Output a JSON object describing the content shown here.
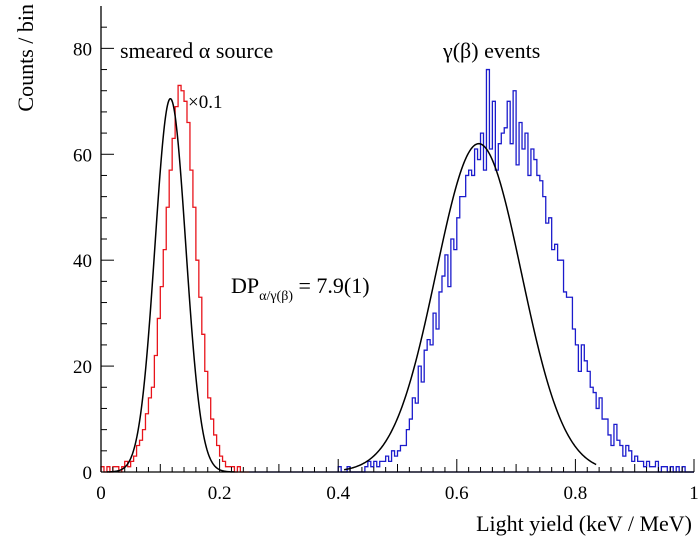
{
  "chart_data": {
    "type": "histogram",
    "xlabel": "Light yield (keV / MeV)",
    "ylabel": "Counts / bin",
    "xlim": [
      0,
      1
    ],
    "ylim": [
      0,
      88
    ],
    "xticks": [
      "0",
      "0.2",
      "0.4",
      "0.6",
      "0.8",
      "1"
    ],
    "yticks": [
      "0",
      "20",
      "40",
      "60",
      "80"
    ],
    "grid": false,
    "bin_width": 0.005,
    "series": [
      {
        "name": "smeared α source",
        "color": "#e8141b",
        "scale_label": "×0.1",
        "bin_start": 0.0,
        "counts": [
          1,
          0,
          1,
          0,
          1,
          1,
          0,
          1,
          2,
          1,
          2,
          3,
          5,
          6,
          8,
          11,
          14,
          16,
          22,
          29,
          35,
          42,
          50,
          57,
          63,
          69,
          73,
          72,
          70,
          66,
          57,
          50,
          40,
          33,
          26,
          19,
          14,
          10,
          7,
          5,
          3,
          2,
          1,
          1,
          1,
          0,
          1,
          0,
          0,
          0
        ],
        "fit": {
          "mean": 0.117,
          "sigma": 0.026,
          "amplitude": 70.5
        }
      },
      {
        "name": "γ(β) events",
        "color": "#1b1bcc",
        "bin_start": 0.4,
        "counts": [
          1,
          0,
          0,
          1,
          0,
          0,
          0,
          0,
          0,
          1,
          2,
          1,
          2,
          1,
          2,
          2,
          3,
          2,
          4,
          3,
          4,
          5,
          5,
          8,
          10,
          14,
          13,
          20,
          17,
          23,
          25,
          24,
          30,
          27,
          34,
          37,
          41,
          35,
          44,
          42,
          48,
          52,
          52,
          56,
          57,
          56,
          61,
          59,
          64,
          57,
          76,
          61,
          70,
          57,
          62,
          64,
          65,
          70,
          62,
          72,
          58,
          66,
          61,
          64,
          56,
          61,
          59,
          56,
          55,
          52,
          47,
          48,
          42,
          43,
          40,
          40,
          34,
          33,
          33,
          27,
          24,
          19,
          24,
          21,
          19,
          16,
          15,
          12,
          14,
          10,
          10,
          7,
          5,
          9,
          6,
          5,
          3,
          5,
          4,
          2,
          3,
          2,
          2,
          1,
          2,
          1,
          1,
          2,
          0,
          1,
          1,
          0,
          1,
          0,
          1,
          0,
          1,
          0,
          0,
          0
        ],
        "fit": {
          "mean": 0.637,
          "sigma": 0.072,
          "amplitude": 62.0
        }
      }
    ],
    "annotations": {
      "dp_main": "DP",
      "dp_subscript": "α/γ(β)",
      "dp_value": " = 7.9(1)"
    }
  }
}
